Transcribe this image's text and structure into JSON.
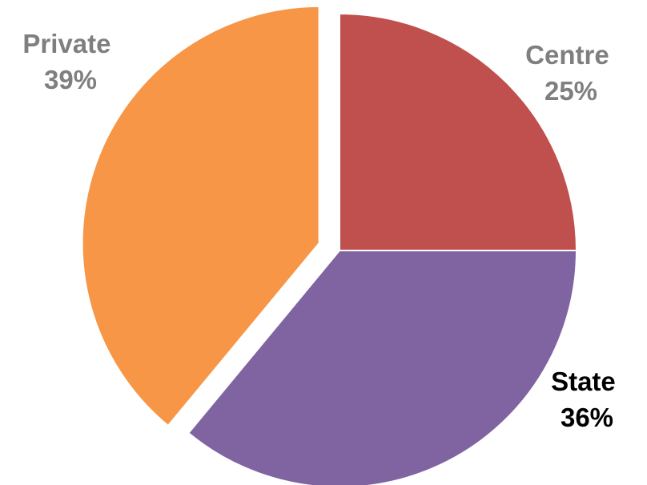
{
  "chart_data": {
    "type": "pie",
    "title": "",
    "slices": [
      {
        "label": "Centre",
        "value": 25,
        "value_label": "25%",
        "color": "#c0504d",
        "label_color": "#7f7f7f",
        "exploded": false
      },
      {
        "label": "State",
        "value": 36,
        "value_label": "36%",
        "color": "#8064a2",
        "label_color": "#000000",
        "exploded": false
      },
      {
        "label": "Private",
        "value": 39,
        "value_label": "39%",
        "color": "#f79646",
        "label_color": "#7f7f7f",
        "exploded": true
      }
    ],
    "legend": "none",
    "start_angle": "12 o'clock",
    "direction": "clockwise"
  }
}
